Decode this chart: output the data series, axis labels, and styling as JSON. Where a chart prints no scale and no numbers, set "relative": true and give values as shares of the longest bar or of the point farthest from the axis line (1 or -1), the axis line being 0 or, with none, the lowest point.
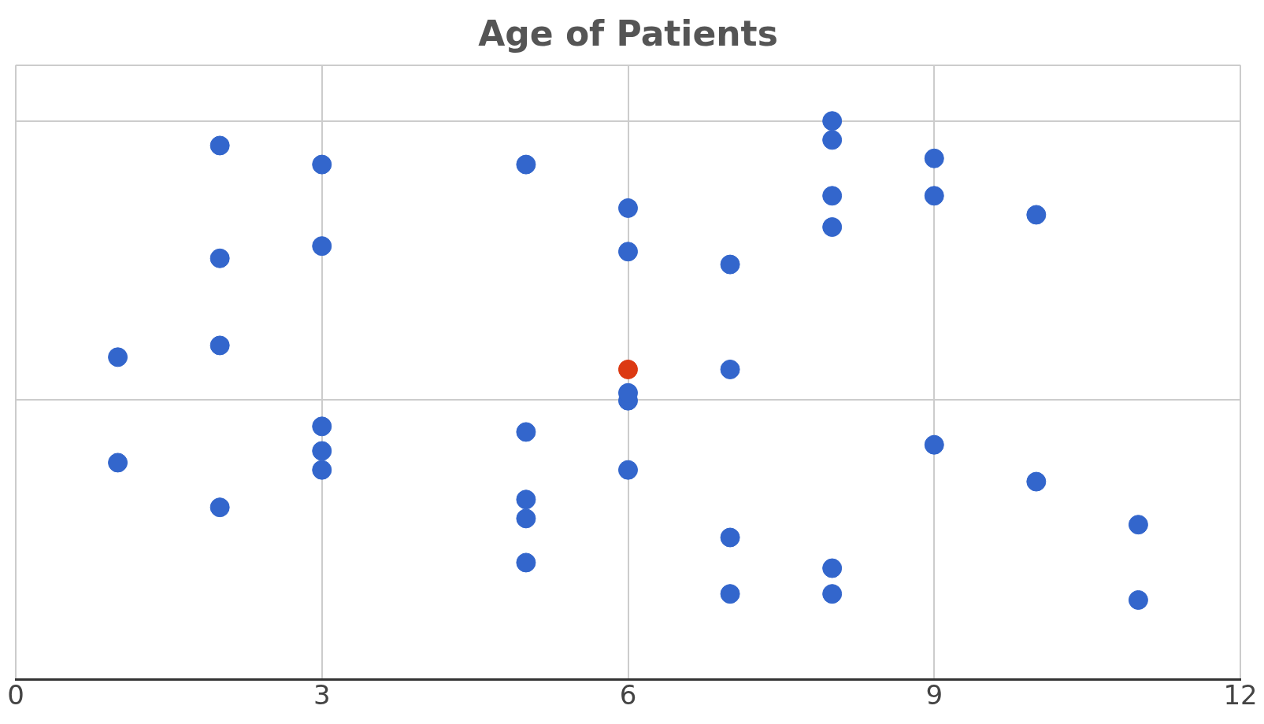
{
  "chart_data": {
    "type": "scatter",
    "title": "Age of Patients",
    "relative": true,
    "xlim": [
      0,
      12
    ],
    "xticks": [
      0,
      3,
      6,
      9,
      12
    ],
    "grid": true,
    "marker": "circle",
    "series": [
      {
        "color": "#3366cc",
        "x": [
          1,
          1,
          2,
          2,
          2,
          2,
          3,
          3,
          3,
          3,
          3,
          5,
          5,
          5,
          5,
          5,
          6,
          6,
          6,
          6,
          6,
          7,
          7,
          7,
          7,
          8,
          8,
          8,
          8,
          8,
          8,
          9,
          9,
          9,
          10,
          10,
          11,
          11
        ],
        "values": [
          0.577,
          0.388,
          0.956,
          0.754,
          0.598,
          0.308,
          0.922,
          0.776,
          0.453,
          0.409,
          0.375,
          0.922,
          0.443,
          0.322,
          0.288,
          0.209,
          0.844,
          0.766,
          0.499,
          0.513,
          0.375,
          0.743,
          0.555,
          0.254,
          0.153,
          1,
          0.966,
          0.866,
          0.81,
          0.199,
          0.153,
          0.933,
          0.866,
          0.42,
          0.832,
          0.354,
          0.277,
          0.142
        ]
      },
      {
        "color": "#dc3912",
        "x": [
          6
        ],
        "values": [
          0.555
        ]
      }
    ]
  }
}
